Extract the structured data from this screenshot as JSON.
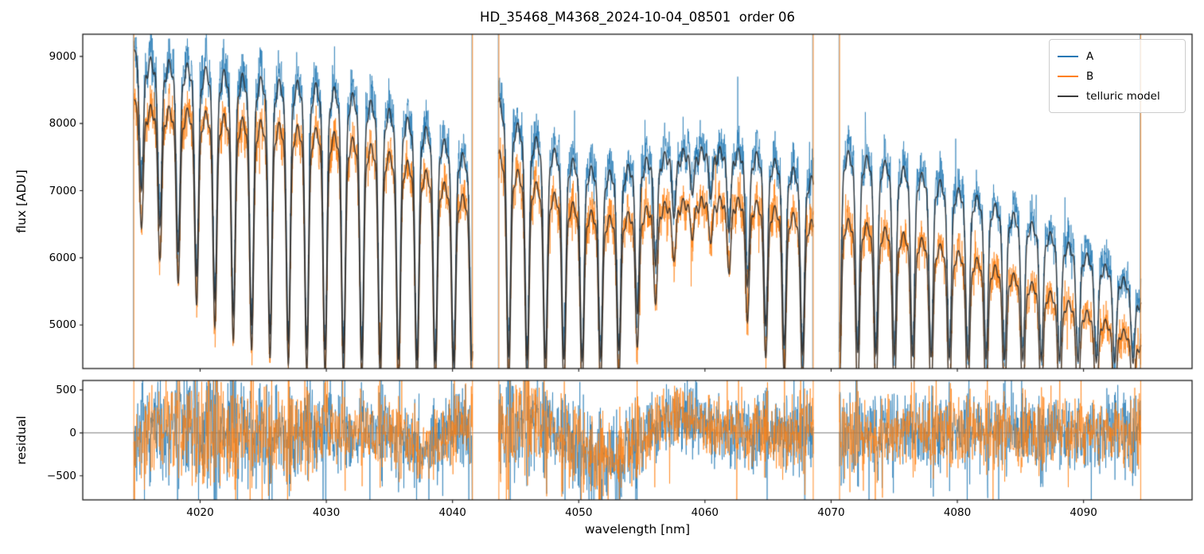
{
  "chart_data": {
    "type": "line",
    "title": "HD_35468_M4368_2024-10-04_08501  order 06",
    "xlabel": "wavelength [nm]",
    "xlim": [
      4010.7,
      4098.6
    ],
    "x_ticks": [
      {
        "v": 4020,
        "label": "4020"
      },
      {
        "v": 4030,
        "label": "4030"
      },
      {
        "v": 4040,
        "label": "4040"
      },
      {
        "v": 4050,
        "label": "4050"
      },
      {
        "v": 4060,
        "label": "4060"
      },
      {
        "v": 4070,
        "label": "4070"
      },
      {
        "v": 4080,
        "label": "4080"
      },
      {
        "v": 4090,
        "label": "4090"
      }
    ],
    "panels": [
      {
        "name": "flux",
        "ylabel": "flux [ADU]",
        "ylim": [
          4350,
          9330
        ],
        "y_ticks": [
          {
            "v": 5000,
            "label": "5000"
          },
          {
            "v": 6000,
            "label": "6000"
          },
          {
            "v": 7000,
            "label": "7000"
          },
          {
            "v": 8000,
            "label": "8000"
          },
          {
            "v": 9000,
            "label": "9000"
          }
        ]
      },
      {
        "name": "residual",
        "ylabel": "residual",
        "ylim": [
          -780,
          610
        ],
        "y_ticks": [
          {
            "v": -500,
            "label": "−500"
          },
          {
            "v": 0,
            "label": "0"
          },
          {
            "v": 500,
            "label": "500"
          }
        ],
        "zero_line": 0
      }
    ],
    "legend": [
      {
        "label": "A",
        "color": "#1f77b4"
      },
      {
        "label": "B",
        "color": "#ff7f0e"
      },
      {
        "label": "telluric model",
        "color": "#3a3a3a"
      }
    ],
    "grid": false,
    "legend_position": "upper right",
    "segments_nm": [
      [
        4014.75,
        4041.6
      ],
      [
        4043.65,
        4068.6
      ],
      [
        4070.65,
        4094.55
      ]
    ],
    "telluric_lines_nm": [
      4015.35,
      4016.81,
      4018.26,
      4019.72,
      4021.17,
      4022.63,
      4024.08,
      4025.54,
      4026.99,
      4028.45,
      4029.9,
      4031.36,
      4032.81,
      4034.27,
      4035.72,
      4037.18,
      4038.63,
      4040.09,
      4041.54,
      4043.0,
      4044.45,
      4045.91,
      4047.36,
      4048.82,
      4050.27,
      4051.73,
      4053.18,
      4054.64,
      4056.09,
      4057.55,
      4059.0,
      4060.46,
      4061.91,
      4063.37,
      4064.82,
      4066.28,
      4067.73,
      4069.19,
      4070.64,
      4072.1,
      4073.55,
      4075.01,
      4076.46,
      4077.92,
      4079.37,
      4080.83,
      4082.28,
      4083.74,
      4085.19,
      4086.65,
      4088.1,
      4089.56,
      4091.01,
      4092.47,
      4093.92
    ],
    "telluric_line_sigma_nm": 0.16,
    "line_core_flux": [
      [
        4015.4,
        7000
      ],
      [
        4017,
        6400
      ],
      [
        4019,
        5900
      ],
      [
        4021,
        5400
      ],
      [
        4023,
        5100
      ],
      [
        4025,
        4900
      ],
      [
        4028,
        4700
      ],
      [
        4032,
        4550
      ],
      [
        4036,
        4480
      ],
      [
        4041,
        4450
      ],
      [
        4044,
        4550
      ],
      [
        4047,
        4500
      ],
      [
        4050,
        4480
      ],
      [
        4053,
        4550
      ],
      [
        4055,
        5300
      ],
      [
        4056.5,
        6100
      ],
      [
        4058,
        6800
      ],
      [
        4059.5,
        7000
      ],
      [
        4061,
        6800
      ],
      [
        4062.5,
        6100
      ],
      [
        4064,
        5200
      ],
      [
        4065.5,
        4800
      ],
      [
        4067,
        4600
      ],
      [
        4069,
        4550
      ],
      [
        4071,
        4600
      ],
      [
        4075,
        4550
      ],
      [
        4080,
        4500
      ],
      [
        4085,
        4480
      ],
      [
        4090,
        4450
      ],
      [
        4094,
        4430
      ]
    ],
    "continuum_A": [
      [
        4014.8,
        9100
      ],
      [
        4016,
        9030
      ],
      [
        4018,
        8980
      ],
      [
        4020,
        8900
      ],
      [
        4022,
        8840
      ],
      [
        4024,
        8760
      ],
      [
        4026,
        8700
      ],
      [
        4028,
        8680
      ],
      [
        4030,
        8620
      ],
      [
        4032,
        8500
      ],
      [
        4034,
        8350
      ],
      [
        4036,
        8170
      ],
      [
        4038,
        7980
      ],
      [
        4040,
        7720
      ],
      [
        4041.6,
        7480
      ],
      [
        4043.7,
        8420
      ],
      [
        4044.5,
        8160
      ],
      [
        4045.5,
        7990
      ],
      [
        4047,
        7790
      ],
      [
        4049,
        7560
      ],
      [
        4051,
        7400
      ],
      [
        4052.5,
        7340
      ],
      [
        4054,
        7430
      ],
      [
        4056,
        7580
      ],
      [
        4058,
        7660
      ],
      [
        4060,
        7690
      ],
      [
        4062,
        7690
      ],
      [
        4064,
        7620
      ],
      [
        4066,
        7480
      ],
      [
        4068,
        7290
      ],
      [
        4068.6,
        7240
      ],
      [
        4070.7,
        7660
      ],
      [
        4072,
        7600
      ],
      [
        4074,
        7500
      ],
      [
        4076,
        7380
      ],
      [
        4078,
        7250
      ],
      [
        4080,
        7080
      ],
      [
        4082,
        6930
      ],
      [
        4084,
        6750
      ],
      [
        4086,
        6560
      ],
      [
        4088,
        6350
      ],
      [
        4090,
        6130
      ],
      [
        4092,
        5900
      ],
      [
        4093.5,
        5700
      ],
      [
        4094.55,
        5400
      ]
    ],
    "continuum_B": [
      [
        4014.8,
        8360
      ],
      [
        4016,
        8320
      ],
      [
        4018,
        8290
      ],
      [
        4020,
        8240
      ],
      [
        4022,
        8180
      ],
      [
        4024,
        8110
      ],
      [
        4026,
        8060
      ],
      [
        4028,
        8010
      ],
      [
        4030,
        7950
      ],
      [
        4032,
        7840
      ],
      [
        4034,
        7700
      ],
      [
        4036,
        7530
      ],
      [
        4038,
        7330
      ],
      [
        4040,
        7080
      ],
      [
        4041.6,
        6880
      ],
      [
        4043.7,
        7640
      ],
      [
        4044.5,
        7440
      ],
      [
        4045.5,
        7300
      ],
      [
        4047,
        7120
      ],
      [
        4049,
        6910
      ],
      [
        4051,
        6740
      ],
      [
        4052.5,
        6660
      ],
      [
        4054,
        6720
      ],
      [
        4056,
        6840
      ],
      [
        4058,
        6910
      ],
      [
        4060,
        6950
      ],
      [
        4062,
        6950
      ],
      [
        4064,
        6890
      ],
      [
        4066,
        6780
      ],
      [
        4068,
        6630
      ],
      [
        4068.6,
        6590
      ],
      [
        4070.7,
        6640
      ],
      [
        4072,
        6590
      ],
      [
        4074,
        6500
      ],
      [
        4076,
        6400
      ],
      [
        4078,
        6280
      ],
      [
        4080,
        6140
      ],
      [
        4082,
        6000
      ],
      [
        4084,
        5840
      ],
      [
        4086,
        5660
      ],
      [
        4088,
        5470
      ],
      [
        4090,
        5270
      ],
      [
        4092,
        5080
      ],
      [
        4093.5,
        4930
      ],
      [
        4094.55,
        4760
      ]
    ],
    "noise_amp_flux": [
      [
        4015,
        330
      ],
      [
        4020,
        300
      ],
      [
        4026,
        290
      ],
      [
        4032,
        280
      ],
      [
        4038,
        270
      ],
      [
        4042,
        280
      ],
      [
        4044,
        300
      ],
      [
        4050,
        290
      ],
      [
        4056,
        280
      ],
      [
        4062,
        270
      ],
      [
        4068,
        280
      ],
      [
        4071,
        280
      ],
      [
        4078,
        260
      ],
      [
        4085,
        255
      ],
      [
        4090,
        250
      ],
      [
        4094.5,
        240
      ]
    ],
    "A_mean_offset": 110,
    "residual_mean": [
      [
        4014.8,
        -150
      ],
      [
        4016,
        0
      ],
      [
        4018,
        50
      ],
      [
        4020,
        0
      ],
      [
        4023,
        0
      ],
      [
        4026,
        0
      ],
      [
        4029,
        0
      ],
      [
        4032,
        0
      ],
      [
        4034.5,
        40
      ],
      [
        4036,
        -60
      ],
      [
        4037.5,
        -210
      ],
      [
        4038.7,
        -130
      ],
      [
        4040,
        60
      ],
      [
        4041.6,
        0
      ],
      [
        4043.7,
        -50
      ],
      [
        4045,
        80
      ],
      [
        4046.5,
        170
      ],
      [
        4048,
        60
      ],
      [
        4049.5,
        -120
      ],
      [
        4051,
        -290
      ],
      [
        4052.3,
        -340
      ],
      [
        4053.5,
        -260
      ],
      [
        4055,
        -70
      ],
      [
        4056.5,
        150
      ],
      [
        4058,
        230
      ],
      [
        4059.5,
        150
      ],
      [
        4061,
        60
      ],
      [
        4063,
        0
      ],
      [
        4065,
        -40
      ],
      [
        4067,
        0
      ],
      [
        4068.6,
        0
      ],
      [
        4070.7,
        0
      ],
      [
        4074,
        20
      ],
      [
        4078,
        0
      ],
      [
        4082,
        0
      ],
      [
        4086,
        0
      ],
      [
        4090,
        0
      ],
      [
        4092,
        30
      ],
      [
        4094.5,
        -50
      ]
    ],
    "residual_amp": [
      [
        4014.8,
        500
      ],
      [
        4016,
        480
      ],
      [
        4018,
        430
      ],
      [
        4020,
        470
      ],
      [
        4022,
        520
      ],
      [
        4024,
        470
      ],
      [
        4026,
        430
      ],
      [
        4028,
        400
      ],
      [
        4030,
        350
      ],
      [
        4032,
        320
      ],
      [
        4034,
        300
      ],
      [
        4036,
        290
      ],
      [
        4038,
        280
      ],
      [
        4040,
        310
      ],
      [
        4041.6,
        360
      ],
      [
        4043.7,
        480
      ],
      [
        4045,
        420
      ],
      [
        4047,
        360
      ],
      [
        4049,
        380
      ],
      [
        4051,
        400
      ],
      [
        4053,
        390
      ],
      [
        4055,
        360
      ],
      [
        4057,
        330
      ],
      [
        4059,
        330
      ],
      [
        4061,
        320
      ],
      [
        4063,
        330
      ],
      [
        4065,
        340
      ],
      [
        4067,
        360
      ],
      [
        4068.6,
        420
      ],
      [
        4070.7,
        400
      ],
      [
        4073,
        330
      ],
      [
        4076,
        310
      ],
      [
        4080,
        310
      ],
      [
        4084,
        310
      ],
      [
        4088,
        320
      ],
      [
        4091,
        340
      ],
      [
        4093,
        380
      ],
      [
        4094.5,
        430
      ]
    ],
    "edge_spikes_nm": [
      4014.75,
      4041.58,
      4043.67,
      4068.58,
      4070.67,
      4094.53
    ],
    "extra_spike": {
      "wavelength_nm": 4062.6,
      "flux_top": 8700
    },
    "colors": {
      "A": "#1f77b4",
      "B": "#ff7f0e",
      "model": "#3a3a3a",
      "zero_line": "#7a7a7a",
      "spine": "#1a1a1a"
    }
  }
}
